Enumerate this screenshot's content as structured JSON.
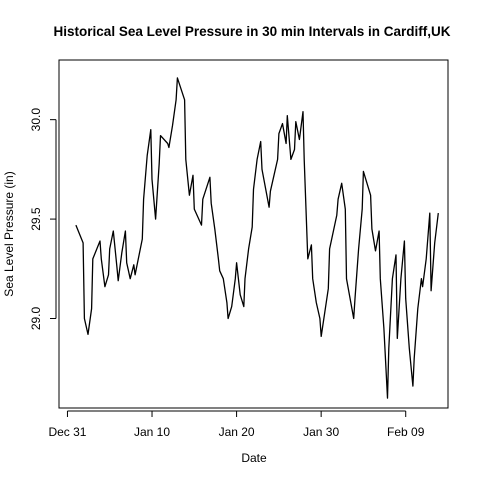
{
  "chart_data": {
    "type": "line",
    "title": "Historical Sea Level Pressure in 30 min Intervals in Cardiff,UK",
    "xlabel": "Date",
    "ylabel": "Sea Level Pressure (in)",
    "x_ticks": [
      {
        "date": "2017-12-31",
        "label": "Dec 31"
      },
      {
        "date": "2018-01-10",
        "label": "Jan 10"
      },
      {
        "date": "2018-01-20",
        "label": "Jan 20"
      },
      {
        "date": "2018-01-30",
        "label": "Jan 30"
      },
      {
        "date": "2018-02-09",
        "label": "Feb 09"
      }
    ],
    "y_ticks": [
      29.0,
      29.5,
      30.0
    ],
    "xlim": [
      "2017-12-30",
      "2018-02-14"
    ],
    "ylim": [
      28.55,
      30.3
    ],
    "grid": false,
    "series": [
      {
        "color": "#000000",
        "points": [
          [
            "2018-01-01",
            29.47
          ],
          [
            "2018-01-01",
            29.38
          ],
          [
            "2018-01-02",
            29.0
          ],
          [
            "2018-01-02",
            28.92
          ],
          [
            "2018-01-02",
            29.05
          ],
          [
            "2018-01-03",
            29.3
          ],
          [
            "2018-01-03",
            29.39
          ],
          [
            "2018-01-04",
            29.3
          ],
          [
            "2018-01-04",
            29.16
          ],
          [
            "2018-01-04",
            29.22
          ],
          [
            "2018-01-05",
            29.35
          ],
          [
            "2018-01-05",
            29.44
          ],
          [
            "2018-01-05",
            29.26
          ],
          [
            "2018-01-06",
            29.19
          ],
          [
            "2018-01-06",
            29.33
          ],
          [
            "2018-01-06",
            29.44
          ],
          [
            "2018-01-07",
            29.28
          ],
          [
            "2018-01-07",
            29.2
          ],
          [
            "2018-01-07",
            29.27
          ],
          [
            "2018-01-08",
            29.22
          ],
          [
            "2018-01-08",
            29.4
          ],
          [
            "2018-01-09",
            29.6
          ],
          [
            "2018-01-09",
            29.82
          ],
          [
            "2018-01-09",
            29.95
          ],
          [
            "2018-01-10",
            29.7
          ],
          [
            "2018-01-10",
            29.5
          ],
          [
            "2018-01-10",
            29.78
          ],
          [
            "2018-01-11",
            29.92
          ],
          [
            "2018-01-11",
            29.88
          ],
          [
            "2018-01-12",
            29.86
          ],
          [
            "2018-01-12",
            29.97
          ],
          [
            "2018-01-12",
            30.1
          ],
          [
            "2018-01-13",
            30.21
          ],
          [
            "2018-01-13",
            30.1
          ],
          [
            "2018-01-14",
            29.8
          ],
          [
            "2018-01-14",
            29.62
          ],
          [
            "2018-01-14",
            29.72
          ],
          [
            "2018-01-15",
            29.55
          ],
          [
            "2018-01-15",
            29.47
          ],
          [
            "2018-01-16",
            29.6
          ],
          [
            "2018-01-16",
            29.71
          ],
          [
            "2018-01-17",
            29.58
          ],
          [
            "2018-01-17",
            29.45
          ],
          [
            "2018-01-17",
            29.3
          ],
          [
            "2018-01-18",
            29.24
          ],
          [
            "2018-01-18",
            29.2
          ],
          [
            "2018-01-18",
            29.08
          ],
          [
            "2018-01-19",
            29.0
          ],
          [
            "2018-01-19",
            29.06
          ],
          [
            "2018-01-19",
            29.2
          ],
          [
            "2018-01-20",
            29.28
          ],
          [
            "2018-01-20",
            29.12
          ],
          [
            "2018-01-20",
            29.06
          ],
          [
            "2018-01-21",
            29.2
          ],
          [
            "2018-01-21",
            29.35
          ],
          [
            "2018-01-21",
            29.46
          ],
          [
            "2018-01-22",
            29.65
          ],
          [
            "2018-01-22",
            29.8
          ],
          [
            "2018-01-22",
            29.89
          ],
          [
            "2018-01-23",
            29.75
          ],
          [
            "2018-01-23",
            29.56
          ],
          [
            "2018-01-24",
            29.64
          ],
          [
            "2018-01-24",
            29.8
          ],
          [
            "2018-01-25",
            29.93
          ],
          [
            "2018-01-25",
            29.98
          ],
          [
            "2018-01-25",
            29.88
          ],
          [
            "2018-01-26",
            30.02
          ],
          [
            "2018-01-26",
            29.8
          ],
          [
            "2018-01-26",
            29.85
          ],
          [
            "2018-01-27",
            29.99
          ],
          [
            "2018-01-27",
            29.9
          ],
          [
            "2018-01-27",
            30.04
          ],
          [
            "2018-01-28",
            29.8
          ],
          [
            "2018-01-28",
            29.3
          ],
          [
            "2018-01-28",
            29.37
          ],
          [
            "2018-01-29",
            29.2
          ],
          [
            "2018-01-29",
            29.08
          ],
          [
            "2018-01-29",
            29.0
          ],
          [
            "2018-01-30",
            28.91
          ],
          [
            "2018-01-30",
            29.15
          ],
          [
            "2018-01-31",
            29.35
          ],
          [
            "2018-01-31",
            29.52
          ],
          [
            "2018-02-01",
            29.6
          ],
          [
            "2018-02-01",
            29.68
          ],
          [
            "2018-02-01",
            29.55
          ],
          [
            "2018-02-02",
            29.2
          ],
          [
            "2018-02-02",
            29.0
          ],
          [
            "2018-02-03",
            29.1
          ],
          [
            "2018-02-03",
            29.35
          ],
          [
            "2018-02-03",
            29.55
          ],
          [
            "2018-02-04",
            29.74
          ],
          [
            "2018-02-04",
            29.62
          ],
          [
            "2018-02-05",
            29.45
          ],
          [
            "2018-02-05",
            29.34
          ],
          [
            "2018-02-05",
            29.44
          ],
          [
            "2018-02-06",
            29.2
          ],
          [
            "2018-02-06",
            28.95
          ],
          [
            "2018-02-06",
            28.6
          ],
          [
            "2018-02-07",
            28.85
          ],
          [
            "2018-02-07",
            29.2
          ],
          [
            "2018-02-07",
            29.32
          ],
          [
            "2018-02-08",
            28.9
          ],
          [
            "2018-02-08",
            29.2
          ],
          [
            "2018-02-08",
            29.39
          ],
          [
            "2018-02-09",
            29.1
          ],
          [
            "2018-02-09",
            28.85
          ],
          [
            "2018-02-09",
            28.66
          ],
          [
            "2018-02-10",
            28.8
          ],
          [
            "2018-02-10",
            29.05
          ],
          [
            "2018-02-10",
            29.2
          ],
          [
            "2018-02-11",
            29.16
          ],
          [
            "2018-02-11",
            29.3
          ],
          [
            "2018-02-11",
            29.53
          ],
          [
            "2018-02-12",
            29.14
          ],
          [
            "2018-02-12",
            29.38
          ],
          [
            "2018-02-12",
            29.53
          ]
        ]
      }
    ]
  }
}
